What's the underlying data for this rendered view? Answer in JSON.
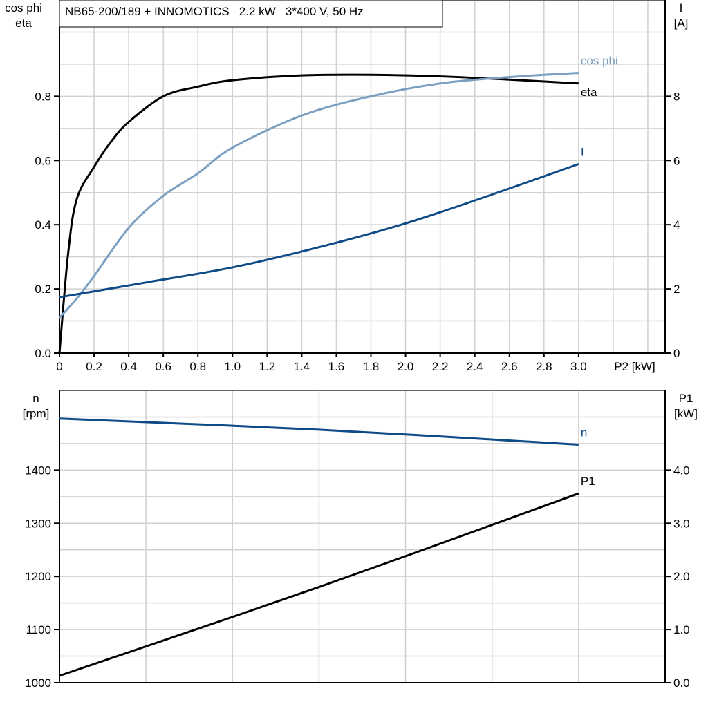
{
  "chart_data": [
    {
      "type": "line",
      "title": "NB65-200/189 + INNOMOTICS   2.2 kW   3*400 V, 50 Hz",
      "xlabel": "P2 [kW]",
      "ylabel_left": [
        "cos phi",
        "eta"
      ],
      "ylabel_right": [
        "I",
        "[A]"
      ],
      "xlim": [
        0,
        3.5
      ],
      "ylim_left": [
        0,
        1.1
      ],
      "ylim_right": [
        0,
        11
      ],
      "x_ticks": [
        "0",
        "0.2",
        "0.4",
        "0.6",
        "0.8",
        "1.0",
        "1.2",
        "1.4",
        "1.6",
        "1.8",
        "2.0",
        "2.2",
        "2.4",
        "2.6",
        "2.8",
        "3.0"
      ],
      "y_ticks_left": [
        "0.0",
        "0.2",
        "0.4",
        "0.6",
        "0.8"
      ],
      "y_ticks_right": [
        "0",
        "2",
        "4",
        "6",
        "8"
      ],
      "grid": true,
      "series": [
        {
          "name": "eta",
          "axis": "left",
          "color": "#000000",
          "x": [
            0,
            0.05,
            0.1,
            0.2,
            0.3,
            0.4,
            0.6,
            0.8,
            1.0,
            1.4,
            1.8,
            2.2,
            2.6,
            3.0
          ],
          "y": [
            0,
            0.31,
            0.48,
            0.58,
            0.66,
            0.72,
            0.8,
            0.83,
            0.85,
            0.865,
            0.867,
            0.862,
            0.852,
            0.84
          ]
        },
        {
          "name": "cos phi",
          "axis": "left",
          "color": "#7a9fc0",
          "x": [
            0,
            0.1,
            0.2,
            0.4,
            0.6,
            0.8,
            1.0,
            1.4,
            1.8,
            2.2,
            2.6,
            3.0
          ],
          "y": [
            0.11,
            0.17,
            0.24,
            0.39,
            0.49,
            0.56,
            0.64,
            0.74,
            0.8,
            0.84,
            0.86,
            0.873
          ]
        },
        {
          "name": "I",
          "axis": "right",
          "color": "#0d4a86",
          "x": [
            0,
            0.5,
            1.0,
            1.5,
            2.0,
            2.5,
            3.0
          ],
          "y": [
            1.74,
            2.2,
            2.67,
            3.3,
            4.04,
            4.94,
            5.89
          ]
        }
      ]
    },
    {
      "type": "line",
      "xlim": [
        0,
        3.5
      ],
      "ylabel_left": [
        "n",
        "[rpm]"
      ],
      "ylabel_right": [
        "P1",
        "[kW]"
      ],
      "ylim_left": [
        1000,
        1550
      ],
      "ylim_right": [
        0,
        5.5
      ],
      "y_ticks_left": [
        "1000",
        "1100",
        "1200",
        "1300",
        "1400"
      ],
      "y_ticks_right": [
        "0.0",
        "1.0",
        "2.0",
        "3.0",
        "4.0"
      ],
      "grid": true,
      "series": [
        {
          "name": "n",
          "axis": "left",
          "color": "#0d4a86",
          "x": [
            0,
            1.5,
            3.0
          ],
          "y": [
            1497,
            1476,
            1448
          ]
        },
        {
          "name": "P1",
          "axis": "right",
          "color": "#000000",
          "x": [
            0,
            1.5,
            3.0
          ],
          "y": [
            0.13,
            1.8,
            3.56
          ]
        }
      ]
    }
  ]
}
